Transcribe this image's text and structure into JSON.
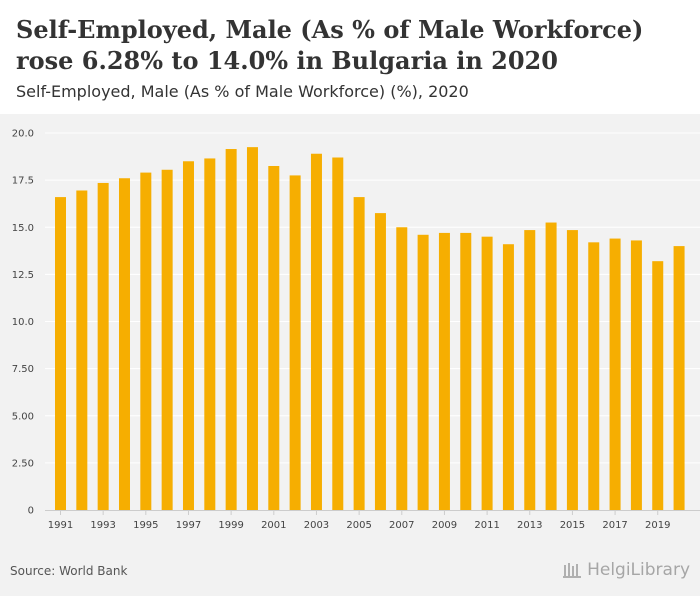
{
  "header": {
    "title": "Self-Employed, Male (As % of Male Workforce) rose 6.28% to 14.0% in Bulgaria in 2020",
    "subtitle": "Self-Employed, Male (As % of Male Workforce) (%), 2020"
  },
  "footer": {
    "source": "Source: World Bank",
    "brand": "HelgiLibrary"
  },
  "colors": {
    "bar": "#f6ae01",
    "grid": "#ffffff",
    "background": "#f2f2f2",
    "axis_text": "#444444"
  },
  "chart_data": {
    "type": "bar",
    "categories": [
      "1991",
      "1992",
      "1993",
      "1994",
      "1995",
      "1996",
      "1997",
      "1998",
      "1999",
      "2000",
      "2001",
      "2002",
      "2003",
      "2004",
      "2005",
      "2006",
      "2007",
      "2008",
      "2009",
      "2010",
      "2011",
      "2012",
      "2013",
      "2014",
      "2015",
      "2016",
      "2017",
      "2018",
      "2019",
      "2020"
    ],
    "x_tick_labels": [
      "1991",
      "1993",
      "1995",
      "1997",
      "1999",
      "2001",
      "2003",
      "2005",
      "2007",
      "2009",
      "2011",
      "2013",
      "2015",
      "2017",
      "2019"
    ],
    "values": [
      16.6,
      16.95,
      17.35,
      17.6,
      17.9,
      18.05,
      18.5,
      18.65,
      19.15,
      19.25,
      18.25,
      17.75,
      18.9,
      18.7,
      16.6,
      15.75,
      15.0,
      14.6,
      14.7,
      14.7,
      14.5,
      14.1,
      14.85,
      15.25,
      14.85,
      14.2,
      14.4,
      14.3,
      13.2,
      14.0
    ],
    "y_ticks": [
      0,
      2.5,
      5.0,
      7.5,
      10.0,
      12.5,
      15.0,
      17.5,
      20.0
    ],
    "y_tick_labels": [
      "0",
      "2.50",
      "5.00",
      "7.50",
      "10.0",
      "12.5",
      "15.0",
      "17.5",
      "20.0"
    ],
    "ylim": [
      0,
      20.0
    ],
    "grid": true,
    "title": "Self-Employed, Male (As % of Male Workforce) rose 6.28% to 14.0% in Bulgaria in 2020",
    "subtitle": "Self-Employed, Male (As % of Male Workforce) (%), 2020"
  }
}
